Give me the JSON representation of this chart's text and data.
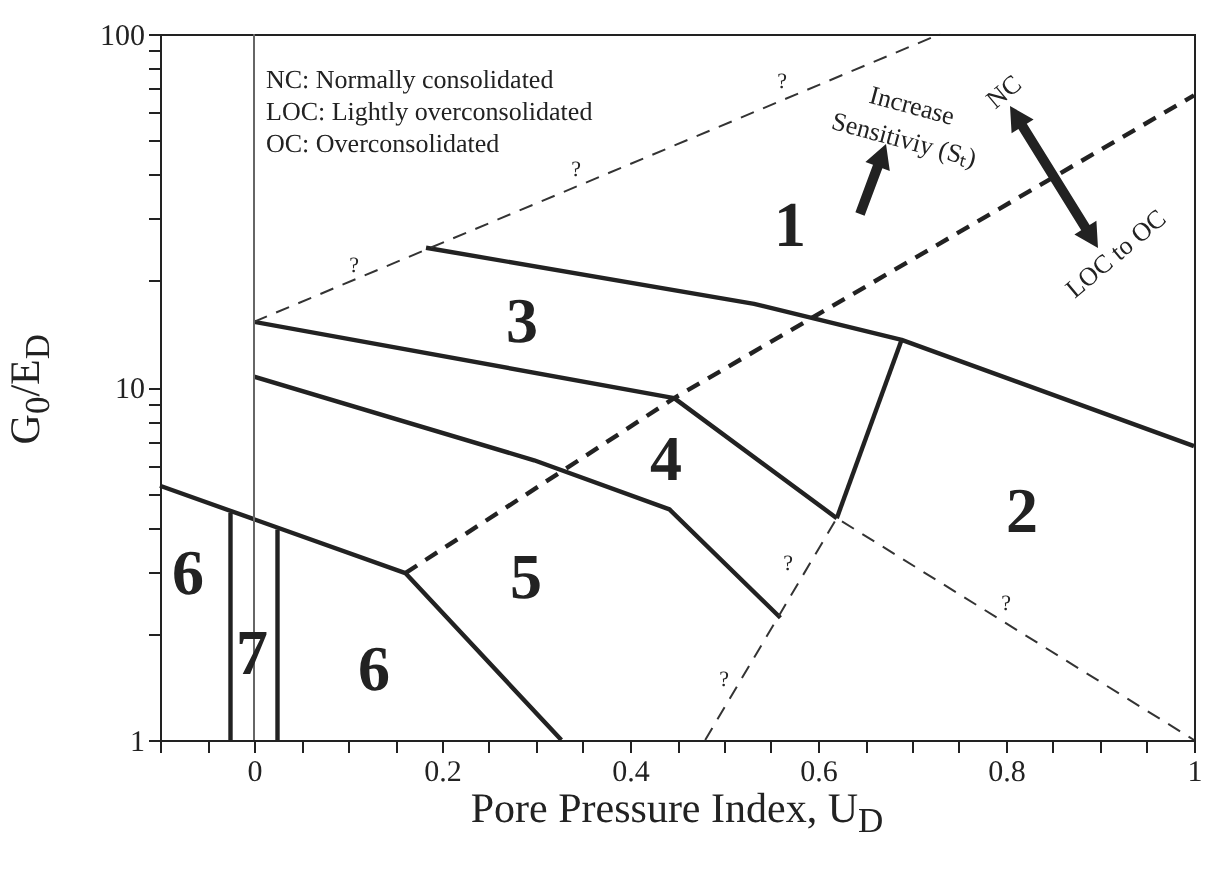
{
  "chart_data": {
    "type": "line",
    "xlabel": "Pore Pressure Index, U$_{D}$",
    "ylabel": "G$_{0}$/E$_{D}$",
    "log": "y",
    "xlim": [
      -0.1,
      1
    ],
    "ylim": [
      1,
      100
    ],
    "xticks": [
      {
        "value": -0.1,
        "label": null
      },
      {
        "value": -0.05,
        "label": null
      },
      0,
      {
        "value": 0.05,
        "label": null
      },
      {
        "value": 0.1,
        "label": null
      },
      {
        "value": 0.15,
        "label": null
      },
      0.2,
      {
        "value": 0.25,
        "label": null
      },
      {
        "value": 0.3,
        "label": null
      },
      {
        "value": 0.35,
        "label": null
      },
      0.4,
      {
        "value": 0.45,
        "label": null
      },
      {
        "value": 0.5,
        "label": null
      },
      {
        "value": 0.55,
        "label": null
      },
      0.6,
      {
        "value": 0.65,
        "label": null
      },
      {
        "value": 0.7,
        "label": null
      },
      {
        "value": 0.75,
        "label": null
      },
      0.8,
      {
        "value": 0.85,
        "label": null
      },
      {
        "value": 0.9,
        "label": null
      },
      {
        "value": 0.95,
        "label": null
      },
      1
    ],
    "yticks": [
      1,
      {
        "value": 2,
        "label": null
      },
      {
        "value": 3,
        "label": null
      },
      {
        "value": 4,
        "label": null
      },
      {
        "value": 5,
        "label": null
      },
      {
        "value": 6,
        "label": null
      },
      {
        "value": 7,
        "label": null
      },
      {
        "value": 8,
        "label": null
      },
      {
        "value": 9,
        "label": null
      },
      10,
      {
        "value": 20,
        "label": null
      },
      {
        "value": 30,
        "label": null
      },
      {
        "value": 40,
        "label": null
      },
      {
        "value": 50,
        "label": null
      },
      {
        "value": 60,
        "label": null
      },
      {
        "value": 70,
        "label": null
      },
      {
        "value": 80,
        "label": null
      },
      {
        "value": 90,
        "label": null
      },
      100
    ],
    "series": [
      {
        "color": "#222222",
        "line_style": "solid",
        "x": [
          0.183,
          0.532,
          0.689,
          1
        ],
        "values": [
          24.8,
          17.2,
          13.6,
          6.8
        ]
      },
      {
        "color": "#222222",
        "line_style": "solid",
        "x": [
          0,
          0.447,
          0.62
        ],
        "values": [
          15.3,
          9.3,
          4.25
        ]
      },
      {
        "color": "#222222",
        "line_style": "solid",
        "x": [
          0.62,
          0.689
        ],
        "values": [
          4.25,
          13.6
        ]
      },
      {
        "color": "#222222",
        "line_style": "solid",
        "x": [
          0,
          0.298,
          0.442,
          0.56
        ],
        "values": [
          10.7,
          6.2,
          4.5,
          2.22
        ]
      },
      {
        "color": "#222222",
        "line_style": "solid",
        "x": [
          -0.1,
          0.161,
          0.327
        ],
        "values": [
          5.25,
          2.97,
          1
        ]
      },
      {
        "color": "#222222",
        "line_style": "solid",
        "x": [
          -0.025,
          -0.025
        ],
        "values": [
          1,
          4.4
        ]
      },
      {
        "color": "#222222",
        "line_style": "solid",
        "x": [
          0.025,
          0.025
        ],
        "values": [
          1,
          3.95
        ]
      },
      {
        "color": "#222222",
        "line_style": "dashed",
        "x": [
          0.161,
          0.447,
          1
        ],
        "values": [
          2.97,
          9.3,
          67
        ]
      },
      {
        "color": "#333333",
        "line_style": "dashed",
        "x": [
          0,
          0.73
        ],
        "values": [
          15.3,
          100
        ]
      },
      {
        "color": "#333333",
        "line_style": "dashed",
        "x": [
          0.48,
          0.62,
          1
        ],
        "values": [
          1,
          4.25,
          1
        ]
      }
    ],
    "ref_lines": [
      {
        "axis": "x",
        "value": 0,
        "color": "#666666"
      }
    ],
    "annotations": [
      "1",
      "2",
      "3",
      "4",
      "5",
      "6",
      "7",
      "6",
      "?",
      "?",
      "?",
      "?",
      "?",
      "?",
      "NC:      Normally consolidated",
      "LOC:   Lightly overconsolidated",
      "OC:     Overconsolidated",
      "Increase",
      "Sensitiviy (Sₜ)",
      "NC",
      "LOC to OC"
    ]
  }
}
